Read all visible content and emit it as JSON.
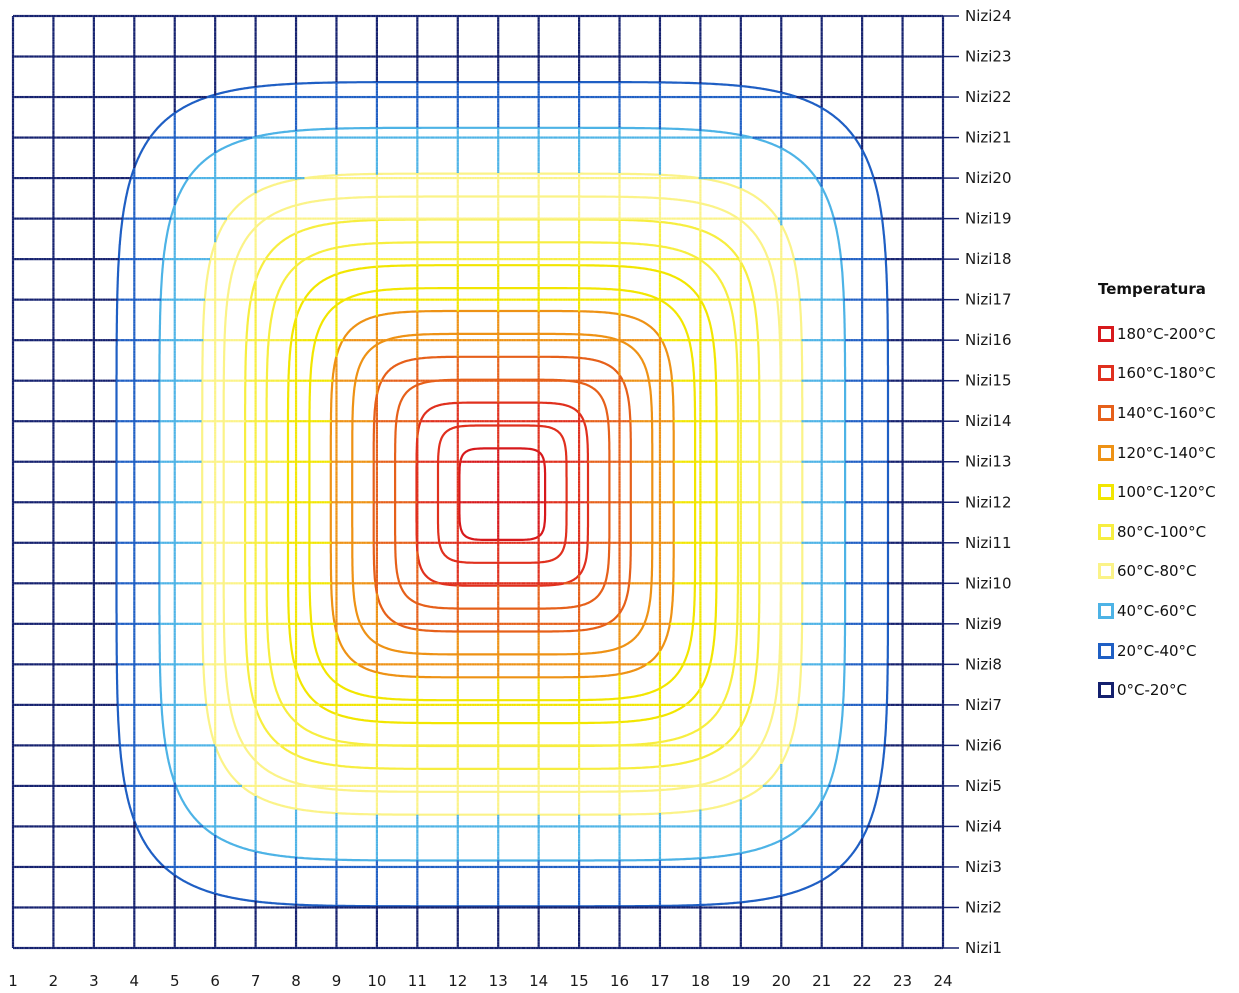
{
  "chart_data": {
    "type": "surface-contour",
    "title": "",
    "xlabel": "",
    "ylabel": "",
    "x_categories": [
      "1",
      "2",
      "3",
      "4",
      "5",
      "6",
      "7",
      "8",
      "9",
      "10",
      "11",
      "12",
      "13",
      "14",
      "15",
      "16",
      "17",
      "18",
      "19",
      "20",
      "21",
      "22",
      "23",
      "24"
    ],
    "y_categories": [
      "Nizi1",
      "Nizi2",
      "Nizi3",
      "Nizi4",
      "Nizi5",
      "Nizi6",
      "Nizi7",
      "Nizi8",
      "Nizi9",
      "Nizi10",
      "Nizi11",
      "Nizi12",
      "Nizi13",
      "Nizi14",
      "Nizi15",
      "Nizi16",
      "Nizi17",
      "Nizi18",
      "Nizi19",
      "Nizi20",
      "Nizi21",
      "Nizi22",
      "Nizi23",
      "Nizi24"
    ],
    "legend": {
      "title": "Temperatura",
      "position": "right",
      "bands": [
        {
          "label": "180°C-200°C",
          "color": "#d7191c"
        },
        {
          "label": "160°C-180°C",
          "color": "#e0301e"
        },
        {
          "label": "140°C-160°C",
          "color": "#e6601a"
        },
        {
          "label": "120°C-140°C",
          "color": "#ee9215"
        },
        {
          "label": "100°C-120°C",
          "color": "#f2e600"
        },
        {
          "label": "80°C-100°C",
          "color": "#f7ee40"
        },
        {
          "label": "60°C-80°C",
          "color": "#fbf388"
        },
        {
          "label": "40°C-60°C",
          "color": "#4db3e6"
        },
        {
          "label": "20°C-40°C",
          "color": "#1f5fc4"
        },
        {
          "label": "0°C-20°C",
          "color": "#14206e"
        }
      ]
    },
    "contour_levels": [
      20,
      40,
      60,
      70,
      80,
      90,
      100,
      110,
      120,
      130,
      140,
      150,
      160,
      170,
      180
    ],
    "model": {
      "center_x": 13.1,
      "center_y": 12.2,
      "half_width_x": 10.6,
      "half_width_y": 11.3,
      "peak_value": 200,
      "shape_exponent": 6
    }
  }
}
